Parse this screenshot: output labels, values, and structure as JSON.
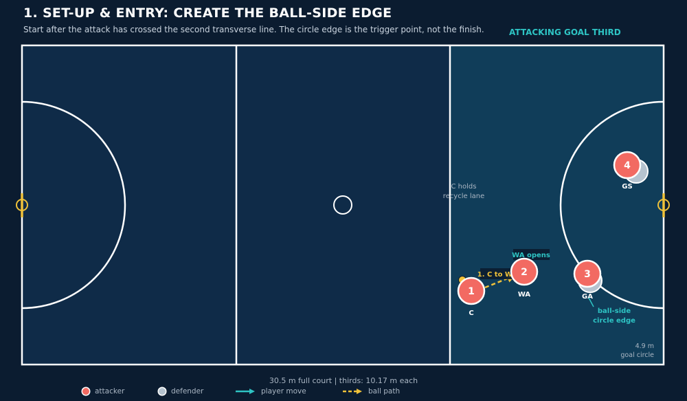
{
  "header": {
    "title": "1. SET-UP & ENTRY: CREATE THE BALL-SIDE EDGE",
    "subtitle": "Start after the attack has crossed the second transverse line. The circle edge is the trigger point, not the finish.",
    "third_label": "ATTACKING GOAL THIRD"
  },
  "players": [
    {
      "id": "c",
      "number": "1",
      "label": "C"
    },
    {
      "id": "wa",
      "number": "2",
      "label": "WA"
    },
    {
      "id": "ga",
      "number": "3",
      "label": "GA"
    },
    {
      "id": "gs",
      "number": "4",
      "label": "GS"
    }
  ],
  "annotations": {
    "c_holds": [
      "C holds",
      "recycle lane"
    ],
    "pass_label": "1. C to WA",
    "wa_opens": "WA opens",
    "ball_side": [
      "ball-side",
      "circle edge"
    ],
    "goal_circle": [
      "4.9 m",
      "goal circle"
    ]
  },
  "footer": {
    "scale_note": "30.5 m full court  |  thirds: 10.17 m each",
    "legend": {
      "attacker": "attacker",
      "defender": "defender",
      "player_move": "player move",
      "ball_path": "ball path"
    }
  },
  "colors": {
    "background": "#0b1c30",
    "court": "#0f2b48",
    "goal_third": "#103d59",
    "attacker": "#f26a62",
    "defender": "#b5c3cf",
    "accent": "#2ec4c4",
    "ball": "#f0c23a",
    "lines": "#ffffff"
  }
}
